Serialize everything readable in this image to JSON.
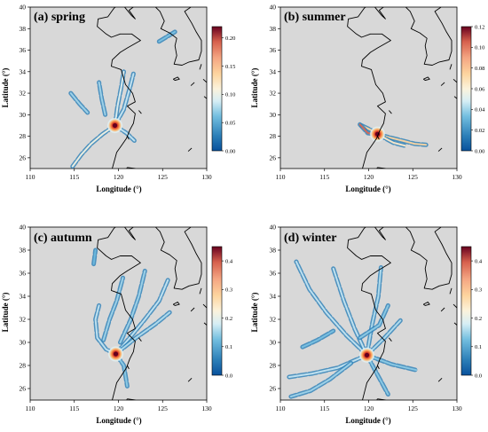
{
  "figure": {
    "colors": {
      "land_background": "#d8d8d8",
      "coastline": "#000000",
      "plume_low": "#2a7fc4",
      "plume_mid": "#8fcfeb",
      "plume_high": "#b2182b",
      "panel_title_bg": "#ffffff"
    }
  },
  "chart_data": [
    {
      "type": "heatmap",
      "title": "(a) spring",
      "xlabel": "Longitude (°)",
      "ylabel": "Latitude (°)",
      "xlim": [
        110,
        130
      ],
      "ylim": [
        25,
        40
      ],
      "xticks": [
        "110",
        "115",
        "120",
        "125",
        "130"
      ],
      "yticks": [
        "26",
        "28",
        "30",
        "32",
        "34",
        "36",
        "38",
        "40"
      ],
      "colorbar": {
        "min": 0.0,
        "max": 0.22,
        "ticks": [
          "0.00",
          "0.05",
          "0.10",
          "0.15",
          "0.20"
        ]
      },
      "hotspot": {
        "lon": 119.6,
        "lat": 29.0,
        "value": 0.22
      },
      "plume_tracks": [
        {
          "value": 0.06,
          "points": [
            [
              119.6,
              29.0
            ],
            [
              118.2,
              28.2
            ],
            [
              116.9,
              27.3
            ],
            [
              115.8,
              26.3
            ],
            [
              114.8,
              25.2
            ]
          ]
        },
        {
          "value": 0.05,
          "points": [
            [
              119.6,
              29.0
            ],
            [
              119.9,
              30.8
            ],
            [
              120.3,
              32.5
            ],
            [
              120.6,
              34.0
            ]
          ]
        },
        {
          "value": 0.04,
          "points": [
            [
              119.6,
              29.0
            ],
            [
              120.6,
              30.5
            ],
            [
              121.3,
              32.5
            ],
            [
              121.7,
              33.8
            ]
          ]
        },
        {
          "value": 0.04,
          "points": [
            [
              119.6,
              29.0
            ],
            [
              120.9,
              28.3
            ],
            [
              121.8,
              27.6
            ]
          ]
        },
        {
          "value": 0.03,
          "points": [
            [
              118.5,
              30.0
            ],
            [
              118.1,
              31.5
            ],
            [
              117.8,
              33.0
            ]
          ]
        },
        {
          "value": 0.03,
          "points": [
            [
              114.6,
              32.0
            ],
            [
              115.6,
              31.0
            ],
            [
              116.5,
              30.2
            ]
          ]
        },
        {
          "value": 0.02,
          "points": [
            [
              124.6,
              36.8
            ],
            [
              126.4,
              37.7
            ]
          ]
        }
      ]
    },
    {
      "type": "heatmap",
      "title": "(b) summer",
      "xlabel": "Longitude (°)",
      "ylabel": "Latitude (°)",
      "xlim": [
        110,
        130
      ],
      "ylim": [
        25,
        40
      ],
      "xticks": [
        "110",
        "115",
        "120",
        "125",
        "130"
      ],
      "yticks": [
        "26",
        "28",
        "30",
        "32",
        "34",
        "36",
        "38",
        "40"
      ],
      "colorbar": {
        "min": 0.0,
        "max": 0.12,
        "ticks": [
          "0.00",
          "0.02",
          "0.04",
          "0.06",
          "0.08",
          "0.10",
          "0.12"
        ]
      },
      "hotspot": {
        "lon": 121.0,
        "lat": 28.2,
        "value": 0.12
      },
      "plume_tracks": [
        {
          "value": 0.05,
          "points": [
            [
              119.2,
              29.0
            ],
            [
              120.2,
              28.6
            ],
            [
              121.0,
              28.2
            ],
            [
              122.3,
              27.9
            ],
            [
              123.8,
              27.6
            ],
            [
              125.2,
              27.3
            ],
            [
              126.5,
              27.2
            ]
          ]
        },
        {
          "value": 0.08,
          "points": [
            [
              119.0,
              29.1
            ],
            [
              119.9,
              28.3
            ],
            [
              120.6,
              28.2
            ]
          ]
        },
        {
          "value": 0.04,
          "points": [
            [
              121.0,
              28.2
            ],
            [
              122.8,
              27.4
            ],
            [
              124.2,
              27.1
            ]
          ]
        }
      ]
    },
    {
      "type": "heatmap",
      "title": "(c) autumn",
      "xlabel": "Longitude (°)",
      "ylabel": "Latitude (°)",
      "xlim": [
        110,
        130
      ],
      "ylim": [
        25,
        40
      ],
      "xticks": [
        "110",
        "115",
        "120",
        "125",
        "130"
      ],
      "yticks": [
        "26",
        "28",
        "30",
        "32",
        "34",
        "36",
        "38",
        "40"
      ],
      "colorbar": {
        "min": 0.0,
        "max": 0.45,
        "ticks": [
          "0.0",
          "0.1",
          "0.2",
          "0.3",
          "0.4"
        ]
      },
      "hotspot": {
        "lon": 119.7,
        "lat": 29.0,
        "value": 0.45
      },
      "plume_tracks": [
        {
          "value": 0.08,
          "points": [
            [
              119.7,
              29.0
            ],
            [
              118.6,
              29.4
            ],
            [
              117.6,
              30.4
            ],
            [
              117.4,
              32.0
            ],
            [
              117.8,
              33.2
            ]
          ]
        },
        {
          "value": 0.08,
          "points": [
            [
              119.7,
              29.0
            ],
            [
              121.5,
              30.6
            ],
            [
              123.0,
              32.0
            ],
            [
              124.6,
              33.6
            ],
            [
              125.6,
              35.4
            ]
          ]
        },
        {
          "value": 0.07,
          "points": [
            [
              119.7,
              29.0
            ],
            [
              122.0,
              30.4
            ],
            [
              124.2,
              31.6
            ],
            [
              125.8,
              32.6
            ]
          ]
        },
        {
          "value": 0.06,
          "points": [
            [
              120.2,
              30.0
            ],
            [
              121.4,
              32.0
            ],
            [
              122.3,
              34.0
            ],
            [
              123.0,
              36.2
            ]
          ]
        },
        {
          "value": 0.06,
          "points": [
            [
              118.3,
              30.2
            ],
            [
              119.0,
              32.0
            ],
            [
              119.8,
              33.6
            ],
            [
              120.5,
              35.6
            ]
          ]
        },
        {
          "value": 0.05,
          "points": [
            [
              119.7,
              29.0
            ],
            [
              120.6,
              28.0
            ],
            [
              121.0,
              26.2
            ]
          ]
        },
        {
          "value": 0.03,
          "points": [
            [
              117.2,
              36.8
            ],
            [
              117.4,
              38.0
            ]
          ]
        }
      ]
    },
    {
      "type": "heatmap",
      "title": "(d) winter",
      "xlabel": "Longitude (°)",
      "ylabel": "Latitude (°)",
      "xlim": [
        110,
        130
      ],
      "ylim": [
        25,
        40
      ],
      "xticks": [
        "110",
        "115",
        "120",
        "125",
        "130"
      ],
      "yticks": [
        "26",
        "28",
        "30",
        "32",
        "34",
        "36",
        "38",
        "40"
      ],
      "colorbar": {
        "min": 0.0,
        "max": 0.45,
        "ticks": [
          "0.0",
          "0.1",
          "0.2",
          "0.3",
          "0.4"
        ]
      },
      "hotspot": {
        "lon": 119.8,
        "lat": 28.9,
        "value": 0.45
      },
      "plume_tracks": [
        {
          "value": 0.08,
          "points": [
            [
              119.8,
              28.9
            ],
            [
              117.5,
              30.6
            ],
            [
              115.2,
              32.6
            ],
            [
              113.3,
              34.6
            ],
            [
              111.8,
              37.0
            ]
          ]
        },
        {
          "value": 0.08,
          "points": [
            [
              119.8,
              28.9
            ],
            [
              118.4,
              31.2
            ],
            [
              117.2,
              33.6
            ],
            [
              116.0,
              36.4
            ]
          ]
        },
        {
          "value": 0.07,
          "points": [
            [
              119.8,
              28.9
            ],
            [
              120.4,
              31.6
            ],
            [
              121.1,
              34.0
            ],
            [
              121.4,
              36.5
            ]
          ]
        },
        {
          "value": 0.07,
          "points": [
            [
              119.8,
              28.9
            ],
            [
              121.8,
              30.4
            ],
            [
              123.6,
              31.9
            ]
          ]
        },
        {
          "value": 0.08,
          "points": [
            [
              119.8,
              28.9
            ],
            [
              116.5,
              27.8
            ],
            [
              113.6,
              27.3
            ],
            [
              111.0,
              27.0
            ]
          ]
        },
        {
          "value": 0.06,
          "points": [
            [
              118.0,
              28.2
            ],
            [
              115.6,
              26.8
            ],
            [
              113.4,
              25.8
            ],
            [
              111.2,
              25.3
            ]
          ]
        },
        {
          "value": 0.05,
          "points": [
            [
              119.8,
              28.9
            ],
            [
              121.0,
              27.2
            ],
            [
              122.2,
              25.5
            ]
          ]
        },
        {
          "value": 0.05,
          "points": [
            [
              119.8,
              28.9
            ],
            [
              122.6,
              28.1
            ],
            [
              125.4,
              27.6
            ]
          ]
        },
        {
          "value": 0.04,
          "points": [
            [
              112.5,
              29.6
            ],
            [
              114.2,
              30.2
            ],
            [
              116.0,
              31.0
            ]
          ]
        },
        {
          "value": 0.05,
          "points": [
            [
              119.0,
              30.4
            ],
            [
              121.2,
              31.5
            ],
            [
              122.2,
              33.2
            ]
          ]
        }
      ]
    }
  ]
}
